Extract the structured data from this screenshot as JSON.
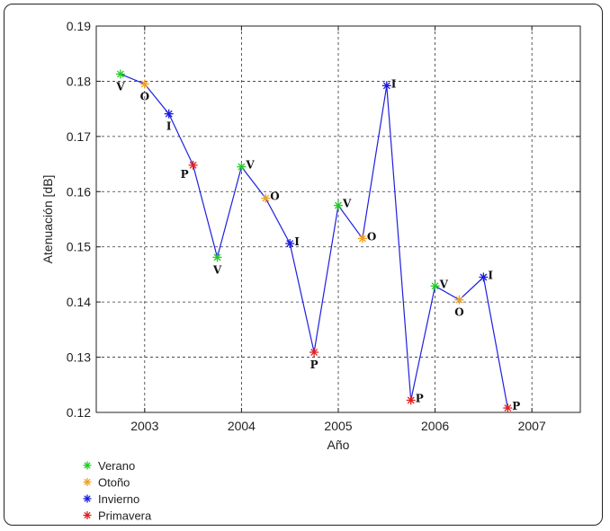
{
  "chart_data": {
    "type": "line",
    "xlabel": "Año",
    "ylabel": "Atenuación [dB]",
    "xlim": [
      2002.5,
      2007.5
    ],
    "ylim": [
      0.12,
      0.19
    ],
    "xticks": [
      2003,
      2004,
      2005,
      2006,
      2007
    ],
    "xtick_labels": [
      "2003",
      "2004",
      "2005",
      "2006",
      "2007"
    ],
    "yticks": [
      0.12,
      0.13,
      0.14,
      0.15,
      0.16,
      0.17,
      0.18,
      0.19
    ],
    "ytick_labels": [
      "0.12",
      "0.13",
      "0.14",
      "0.15",
      "0.16",
      "0.17",
      "0.18",
      "0.19"
    ],
    "grid": true,
    "line_color": "#1f1fe0",
    "legend_placement": "bottom-left-outside",
    "legend": [
      {
        "label": "Verano",
        "color": "#22cc22"
      },
      {
        "label": "Otoño",
        "color": "#f0a020"
      },
      {
        "label": "Invierno",
        "color": "#1a1ae0"
      },
      {
        "label": "Primavera",
        "color": "#e02020"
      }
    ],
    "points": [
      {
        "x": 2002.75,
        "y": 0.1813,
        "season": "Verano",
        "letter": "V",
        "label_pos": "below"
      },
      {
        "x": 2003.0,
        "y": 0.1795,
        "season": "Otoño",
        "letter": "O",
        "label_pos": "below"
      },
      {
        "x": 2003.25,
        "y": 0.1741,
        "season": "Invierno",
        "letter": "I",
        "label_pos": "below"
      },
      {
        "x": 2003.5,
        "y": 0.1648,
        "season": "Primavera",
        "letter": "P",
        "label_pos": "left"
      },
      {
        "x": 2003.75,
        "y": 0.1481,
        "season": "Verano",
        "letter": "V",
        "label_pos": "below"
      },
      {
        "x": 2004.0,
        "y": 0.1645,
        "season": "Verano",
        "letter": "V",
        "label_pos": "right"
      },
      {
        "x": 2004.25,
        "y": 0.1588,
        "season": "Otoño",
        "letter": "O",
        "label_pos": "right"
      },
      {
        "x": 2004.5,
        "y": 0.1506,
        "season": "Invierno",
        "letter": "I",
        "label_pos": "right"
      },
      {
        "x": 2004.75,
        "y": 0.1309,
        "season": "Primavera",
        "letter": "P",
        "label_pos": "below"
      },
      {
        "x": 2005.0,
        "y": 0.1575,
        "season": "Verano",
        "letter": "V",
        "label_pos": "right"
      },
      {
        "x": 2005.25,
        "y": 0.1515,
        "season": "Otoño",
        "letter": "O",
        "label_pos": "right"
      },
      {
        "x": 2005.5,
        "y": 0.1792,
        "season": "Invierno",
        "letter": "I",
        "label_pos": "right"
      },
      {
        "x": 2005.75,
        "y": 0.1222,
        "season": "Primavera",
        "letter": "P",
        "label_pos": "right"
      },
      {
        "x": 2006.0,
        "y": 0.1429,
        "season": "Verano",
        "letter": "V",
        "label_pos": "right"
      },
      {
        "x": 2006.25,
        "y": 0.1404,
        "season": "Otoño",
        "letter": "O",
        "label_pos": "below"
      },
      {
        "x": 2006.5,
        "y": 0.1445,
        "season": "Invierno",
        "letter": "I",
        "label_pos": "right"
      },
      {
        "x": 2006.75,
        "y": 0.1208,
        "season": "Primavera",
        "letter": "P",
        "label_pos": "right"
      }
    ]
  }
}
